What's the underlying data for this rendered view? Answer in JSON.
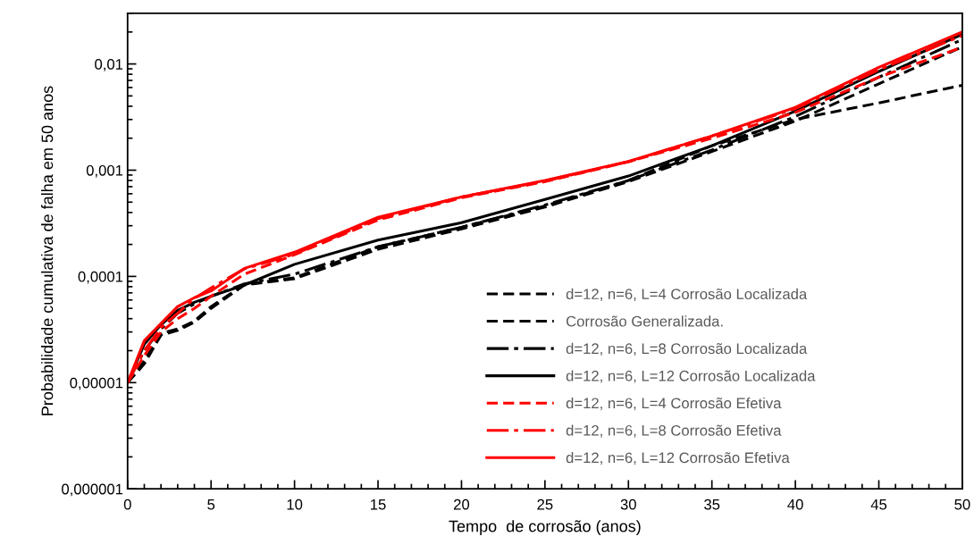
{
  "chart_data": {
    "type": "line",
    "xlabel": "Tempo  de corrosão (anos)",
    "ylabel": "Probabilidade cumulativa de falha em 50 anos",
    "x": [
      0,
      1,
      2,
      3,
      4,
      5,
      7,
      10,
      15,
      20,
      25,
      30,
      35,
      40,
      45,
      50
    ],
    "xlim": [
      0,
      50
    ],
    "xticks": [
      0,
      5,
      10,
      15,
      20,
      25,
      30,
      35,
      40,
      45,
      50
    ],
    "ylim": [
      1e-06,
      0.03
    ],
    "log": "y",
    "yticks": [
      {
        "value": 1e-06,
        "label": "0,000001"
      },
      {
        "value": 1e-05,
        "label": "0,00001"
      },
      {
        "value": 0.0001,
        "label": "0,0001"
      },
      {
        "value": 0.001,
        "label": "0,001"
      },
      {
        "value": 0.01,
        "label": "0,01"
      }
    ],
    "grid": false,
    "legend": "lower right",
    "marker": "none",
    "series": [
      {
        "name": "d=12, n=6, L=4 Corrosão Localizada",
        "color": "#000000",
        "line_style": "dashed",
        "values": [
          1e-05,
          1.5e-05,
          2.8e-05,
          3.1e-05,
          3.7e-05,
          5e-05,
          8.3e-05,
          9.5e-05,
          0.00018,
          0.00028,
          0.00045,
          0.00078,
          0.0015,
          0.0029,
          0.0065,
          0.0145
        ]
      },
      {
        "name": "Corrosão Generalizada.",
        "color": "#000000",
        "line_style": "dashed",
        "values": [
          1e-05,
          1.6e-05,
          2.9e-05,
          3.2e-05,
          3.8e-05,
          5.2e-05,
          8.4e-05,
          9.7e-05,
          0.00019,
          0.00029,
          0.00046,
          0.0008,
          0.0017,
          0.003,
          0.0043,
          0.0063
        ]
      },
      {
        "name": "d=12, n=6, L=8 Corrosão Localizada",
        "color": "#000000",
        "line_style": "dashdot",
        "values": [
          1e-05,
          2e-05,
          3.2e-05,
          4.5e-05,
          5.5e-05,
          6.5e-05,
          8.5e-05,
          0.000105,
          0.00019,
          0.00029,
          0.00047,
          0.0008,
          0.00155,
          0.0032,
          0.0075,
          0.017
        ]
      },
      {
        "name": "d=12, n=6, L=12 Corrosão Localizada",
        "color": "#000000",
        "line_style": "solid",
        "values": [
          1e-05,
          2.3e-05,
          3.5e-05,
          4.8e-05,
          5.7e-05,
          6.5e-05,
          8.3e-05,
          0.00013,
          0.00022,
          0.00032,
          0.00053,
          0.00088,
          0.0017,
          0.0036,
          0.0085,
          0.019
        ]
      },
      {
        "name": "d=12, n=6, L=4 Corrosão Efetiva",
        "color": "#ff0000",
        "line_style": "dashed",
        "values": [
          1e-05,
          1.8e-05,
          3e-05,
          4e-05,
          5e-05,
          6.5e-05,
          0.000105,
          0.00016,
          0.00034,
          0.00055,
          0.00078,
          0.0012,
          0.002,
          0.0035,
          0.0075,
          0.0144
        ]
      },
      {
        "name": "d=12, n=6, L=8 Corrosão Efetiva",
        "color": "#ff0000",
        "line_style": "dashdot",
        "values": [
          1e-05,
          2e-05,
          3.3e-05,
          4.5e-05,
          6.2e-05,
          7.8e-05,
          0.000118,
          0.000162,
          0.00035,
          0.00056,
          0.00079,
          0.0012,
          0.0021,
          0.0038,
          0.0088,
          0.0185
        ]
      },
      {
        "name": "d=12, n=6, L=12 Corrosão Efetiva",
        "color": "#ff0000",
        "line_style": "solid",
        "values": [
          1e-05,
          2.48e-05,
          3.6e-05,
          5.2e-05,
          6.3e-05,
          7.3e-05,
          0.000119,
          0.000169,
          0.00036,
          0.00056,
          0.0008,
          0.00121,
          0.0021,
          0.0039,
          0.0093,
          0.02
        ]
      }
    ]
  }
}
